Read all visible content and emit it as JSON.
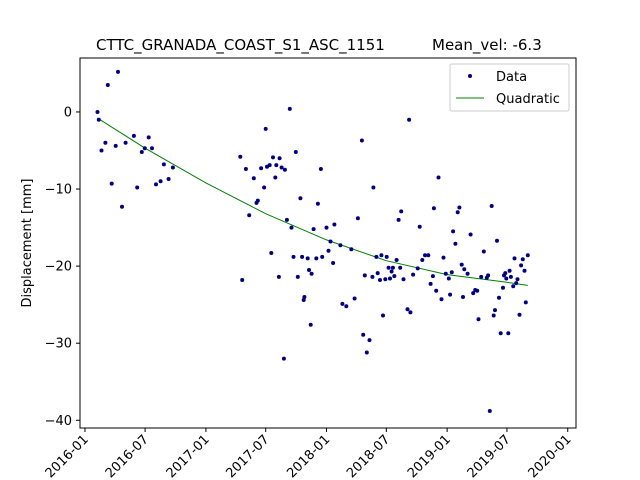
{
  "chart_data": {
    "type": "scatter",
    "title_left": "CTTC_GRANADA_COAST_S1_ASC_1151",
    "title_right": "Mean_vel: -6.3",
    "xlabel": "",
    "ylabel": "Displacement [mm]",
    "xlim": [
      "2015-12-17",
      "2020-01-26"
    ],
    "ylim": [
      -41,
      7
    ],
    "x_ticks": [
      "2016-01",
      "2016-07",
      "2017-01",
      "2017-07",
      "2018-01",
      "2018-07",
      "2019-01",
      "2019-07",
      "2020-01"
    ],
    "y_ticks": [
      0,
      -10,
      -20,
      -30,
      -40
    ],
    "grid": false,
    "legend": {
      "position": "top-right",
      "entries": [
        "Data",
        "Quadratic"
      ]
    },
    "colors": {
      "data": "#000080",
      "fit": "#008000"
    },
    "series": [
      {
        "name": "Data",
        "kind": "points",
        "points": [
          [
            "2016-02-08",
            0.0
          ],
          [
            "2016-02-12",
            -1.0
          ],
          [
            "2016-02-20",
            -5.0
          ],
          [
            "2016-03-03",
            -4.0
          ],
          [
            "2016-03-10",
            3.5
          ],
          [
            "2016-03-22",
            -9.3
          ],
          [
            "2016-04-03",
            -4.4
          ],
          [
            "2016-04-10",
            5.2
          ],
          [
            "2016-04-22",
            -12.3
          ],
          [
            "2016-05-03",
            -4.0
          ],
          [
            "2016-05-28",
            -3.1
          ],
          [
            "2016-06-07",
            -9.8
          ],
          [
            "2016-06-21",
            -5.2
          ],
          [
            "2016-06-30",
            -4.7
          ],
          [
            "2016-07-12",
            -3.3
          ],
          [
            "2016-07-22",
            -4.7
          ],
          [
            "2016-08-03",
            -9.4
          ],
          [
            "2016-08-17",
            -9.0
          ],
          [
            "2016-08-27",
            -6.8
          ],
          [
            "2016-09-10",
            -8.7
          ],
          [
            "2016-09-23",
            -7.2
          ],
          [
            "2017-04-15",
            -5.8
          ],
          [
            "2017-04-21",
            -21.8
          ],
          [
            "2017-05-02",
            -7.4
          ],
          [
            "2017-05-12",
            -13.4
          ],
          [
            "2017-05-26",
            -8.6
          ],
          [
            "2017-06-03",
            -11.8
          ],
          [
            "2017-06-07",
            -11.5
          ],
          [
            "2017-06-17",
            -7.3
          ],
          [
            "2017-06-26",
            -9.8
          ],
          [
            "2017-07-01",
            -2.2
          ],
          [
            "2017-07-05",
            -7.1
          ],
          [
            "2017-07-13",
            -6.9
          ],
          [
            "2017-07-18",
            -18.3
          ],
          [
            "2017-07-23",
            -5.9
          ],
          [
            "2017-07-30",
            -8.5
          ],
          [
            "2017-08-02",
            -6.9
          ],
          [
            "2017-08-10",
            -21.4
          ],
          [
            "2017-08-12",
            -6.0
          ],
          [
            "2017-08-18",
            -7.2
          ],
          [
            "2017-08-25",
            -32.0
          ],
          [
            "2017-08-28",
            -7.5
          ],
          [
            "2017-09-03",
            -14.0
          ],
          [
            "2017-09-12",
            0.4
          ],
          [
            "2017-09-17",
            -15.0
          ],
          [
            "2017-09-23",
            -18.8
          ],
          [
            "2017-09-30",
            -5.2
          ],
          [
            "2017-10-06",
            -21.4
          ],
          [
            "2017-10-14",
            -11.2
          ],
          [
            "2017-10-19",
            -18.8
          ],
          [
            "2017-10-24",
            -24.4
          ],
          [
            "2017-10-26",
            -24.0
          ],
          [
            "2017-11-05",
            -19.0
          ],
          [
            "2017-11-09",
            -20.5
          ],
          [
            "2017-11-14",
            -27.6
          ],
          [
            "2017-11-17",
            -21.0
          ],
          [
            "2017-11-23",
            -15.2
          ],
          [
            "2017-12-01",
            -19.0
          ],
          [
            "2017-12-06",
            -11.9
          ],
          [
            "2017-12-15",
            -7.4
          ],
          [
            "2017-12-19",
            -18.8
          ],
          [
            "2018-01-01",
            -15.0
          ],
          [
            "2018-01-07",
            -18.0
          ],
          [
            "2018-01-13",
            -16.8
          ],
          [
            "2018-01-21",
            -19.6
          ],
          [
            "2018-01-25",
            -14.6
          ],
          [
            "2018-02-12",
            -17.3
          ],
          [
            "2018-02-18",
            -24.9
          ],
          [
            "2018-03-02",
            -25.2
          ],
          [
            "2018-03-17",
            -17.8
          ],
          [
            "2018-03-27",
            -24.2
          ],
          [
            "2018-04-06",
            -13.8
          ],
          [
            "2018-04-18",
            -3.7
          ],
          [
            "2018-04-22",
            -28.9
          ],
          [
            "2018-04-27",
            -21.2
          ],
          [
            "2018-05-03",
            -31.2
          ],
          [
            "2018-05-11",
            -29.6
          ],
          [
            "2018-05-20",
            -21.4
          ],
          [
            "2018-05-23",
            -9.8
          ],
          [
            "2018-06-01",
            -18.8
          ],
          [
            "2018-06-05",
            -20.9
          ],
          [
            "2018-06-12",
            -21.8
          ],
          [
            "2018-06-16",
            -18.6
          ],
          [
            "2018-06-21",
            -26.4
          ],
          [
            "2018-06-28",
            -21.7
          ],
          [
            "2018-07-02",
            -18.8
          ],
          [
            "2018-07-08",
            -20.2
          ],
          [
            "2018-07-12",
            -21.6
          ],
          [
            "2018-07-17",
            -20.7
          ],
          [
            "2018-07-21",
            -20.2
          ],
          [
            "2018-07-25",
            -21.3
          ],
          [
            "2018-08-01",
            -19.2
          ],
          [
            "2018-08-07",
            -14.0
          ],
          [
            "2018-08-12",
            -20.2
          ],
          [
            "2018-08-15",
            -12.9
          ],
          [
            "2018-08-22",
            -21.7
          ],
          [
            "2018-09-03",
            -25.6
          ],
          [
            "2018-09-08",
            -1.0
          ],
          [
            "2018-09-12",
            -26.0
          ],
          [
            "2018-09-20",
            -21.1
          ],
          [
            "2018-10-04",
            -20.3
          ],
          [
            "2018-10-10",
            -14.9
          ],
          [
            "2018-10-18",
            -19.2
          ],
          [
            "2018-10-26",
            -18.6
          ],
          [
            "2018-11-05",
            -18.6
          ],
          [
            "2018-11-12",
            -22.3
          ],
          [
            "2018-11-19",
            -21.3
          ],
          [
            "2018-11-22",
            -12.5
          ],
          [
            "2018-11-29",
            -23.2
          ],
          [
            "2018-12-06",
            -8.5
          ],
          [
            "2018-12-15",
            -24.3
          ],
          [
            "2018-12-21",
            -18.9
          ],
          [
            "2018-12-28",
            -21.0
          ],
          [
            "2019-01-06",
            -21.6
          ],
          [
            "2019-01-10",
            -23.7
          ],
          [
            "2019-01-15",
            -20.8
          ],
          [
            "2019-01-19",
            -15.5
          ],
          [
            "2019-01-26",
            -17.1
          ],
          [
            "2019-02-02",
            -13.0
          ],
          [
            "2019-02-07",
            -12.4
          ],
          [
            "2019-02-14",
            -19.8
          ],
          [
            "2019-02-18",
            -24.0
          ],
          [
            "2019-02-22",
            -20.4
          ],
          [
            "2019-03-04",
            -21.0
          ],
          [
            "2019-03-13",
            -15.9
          ],
          [
            "2019-03-21",
            -23.5
          ],
          [
            "2019-03-27",
            -23.1
          ],
          [
            "2019-04-02",
            -23.2
          ],
          [
            "2019-04-06",
            -26.9
          ],
          [
            "2019-04-14",
            -21.4
          ],
          [
            "2019-04-22",
            -18.1
          ],
          [
            "2019-05-01",
            -21.5
          ],
          [
            "2019-05-05",
            -21.2
          ],
          [
            "2019-05-10",
            -38.8
          ],
          [
            "2019-05-16",
            -12.2
          ],
          [
            "2019-05-22",
            -26.4
          ],
          [
            "2019-05-26",
            -25.7
          ],
          [
            "2019-06-01",
            -16.7
          ],
          [
            "2019-06-07",
            -24.1
          ],
          [
            "2019-06-12",
            -28.7
          ],
          [
            "2019-06-19",
            -22.8
          ],
          [
            "2019-06-22",
            -21.2
          ],
          [
            "2019-06-26",
            -20.9
          ],
          [
            "2019-06-29",
            -21.6
          ],
          [
            "2019-07-05",
            -28.7
          ],
          [
            "2019-07-09",
            -20.6
          ],
          [
            "2019-07-13",
            -21.4
          ],
          [
            "2019-07-20",
            -22.6
          ],
          [
            "2019-07-24",
            -19.0
          ],
          [
            "2019-07-29",
            -22.2
          ],
          [
            "2019-08-02",
            -21.7
          ],
          [
            "2019-08-08",
            -26.3
          ],
          [
            "2019-08-13",
            -19.9
          ],
          [
            "2019-08-18",
            -19.1
          ],
          [
            "2019-08-23",
            -20.6
          ],
          [
            "2019-08-27",
            -24.7
          ],
          [
            "2019-09-02",
            -18.6
          ]
        ]
      },
      {
        "name": "Quadratic",
        "kind": "line",
        "points": [
          [
            "2016-02-08",
            -0.8
          ],
          [
            "2016-07-01",
            -4.7
          ],
          [
            "2017-01-01",
            -9.2
          ],
          [
            "2017-07-01",
            -13.2
          ],
          [
            "2018-01-01",
            -16.6
          ],
          [
            "2018-07-01",
            -19.3
          ],
          [
            "2019-01-01",
            -21.1
          ],
          [
            "2019-07-01",
            -22.1
          ],
          [
            "2019-09-02",
            -22.5
          ]
        ]
      }
    ]
  }
}
